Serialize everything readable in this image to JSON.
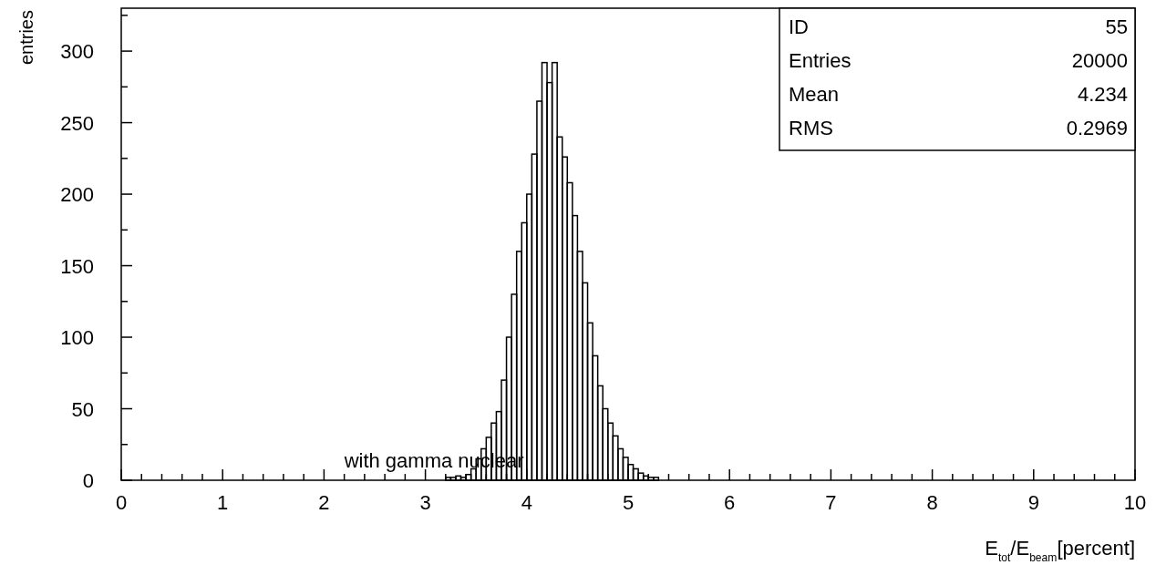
{
  "chart_data": {
    "type": "histogram",
    "xlabel": "E$_{tot}$/E$_{beam}$[percent]",
    "ylabel": "entries",
    "bins": [
      3.2,
      3.25,
      3.3,
      3.35,
      3.4,
      3.45,
      3.5,
      3.55,
      3.6,
      3.65,
      3.7,
      3.75,
      3.8,
      3.85,
      3.9,
      3.95,
      4.0,
      4.05,
      4.1,
      4.15,
      4.2,
      4.25,
      4.3,
      4.35,
      4.4,
      4.45,
      4.5,
      4.55,
      4.6,
      4.65,
      4.7,
      4.75,
      4.8,
      4.85,
      4.9,
      4.95,
      5.0,
      5.05,
      5.1,
      5.15,
      5.2,
      5.25,
      5.3
    ],
    "values": [
      2,
      2,
      3,
      2,
      4,
      8,
      15,
      22,
      30,
      40,
      48,
      70,
      100,
      130,
      160,
      180,
      200,
      228,
      265,
      292,
      278,
      292,
      240,
      226,
      208,
      185,
      160,
      138,
      110,
      87,
      66,
      50,
      40,
      31,
      22,
      16,
      11,
      8,
      5,
      3,
      2,
      2
    ],
    "color": "#000000",
    "xlim": [
      0,
      10
    ],
    "xticks": [
      0,
      {
        "value": 0.2,
        "label": null
      },
      {
        "value": 0.4,
        "label": null
      },
      {
        "value": 0.6,
        "label": null
      },
      {
        "value": 0.8,
        "label": null
      },
      1,
      {
        "value": 1.2,
        "label": null
      },
      {
        "value": 1.4,
        "label": null
      },
      {
        "value": 1.6,
        "label": null
      },
      {
        "value": 1.8,
        "label": null
      },
      2,
      {
        "value": 2.2,
        "label": null
      },
      {
        "value": 2.4,
        "label": null
      },
      {
        "value": 2.6,
        "label": null
      },
      {
        "value": 2.8,
        "label": null
      },
      3,
      {
        "value": 3.2,
        "label": null
      },
      {
        "value": 3.4,
        "label": null
      },
      {
        "value": 3.6,
        "label": null
      },
      {
        "value": 3.8,
        "label": null
      },
      4,
      {
        "value": 4.2,
        "label": null
      },
      {
        "value": 4.4,
        "label": null
      },
      {
        "value": 4.6,
        "label": null
      },
      {
        "value": 4.8,
        "label": null
      },
      5,
      {
        "value": 5.2,
        "label": null
      },
      {
        "value": 5.4,
        "label": null
      },
      {
        "value": 5.6,
        "label": null
      },
      {
        "value": 5.8,
        "label": null
      },
      6,
      {
        "value": 6.2,
        "label": null
      },
      {
        "value": 6.4,
        "label": null
      },
      {
        "value": 6.6,
        "label": null
      },
      {
        "value": 6.8,
        "label": null
      },
      7,
      {
        "value": 7.2,
        "label": null
      },
      {
        "value": 7.4,
        "label": null
      },
      {
        "value": 7.6,
        "label": null
      },
      {
        "value": 7.8,
        "label": null
      },
      8,
      {
        "value": 8.2,
        "label": null
      },
      {
        "value": 8.4,
        "label": null
      },
      {
        "value": 8.6,
        "label": null
      },
      {
        "value": 8.8,
        "label": null
      },
      9,
      {
        "value": 9.2,
        "label": null
      },
      {
        "value": 9.4,
        "label": null
      },
      {
        "value": 9.6,
        "label": null
      },
      {
        "value": 9.8,
        "label": null
      },
      10
    ],
    "ylim": [
      0,
      330
    ],
    "yticks": [
      0,
      {
        "value": 25,
        "label": null
      },
      50,
      {
        "value": 75,
        "label": null
      },
      100,
      {
        "value": 125,
        "label": null
      },
      150,
      {
        "value": 175,
        "label": null
      },
      200,
      {
        "value": 225,
        "label": null
      },
      250,
      {
        "value": 275,
        "label": null
      },
      300,
      {
        "value": 325,
        "label": null
      }
    ],
    "annotations": [
      "with gamma nuclear",
      "ID",
      "55",
      "Entries",
      "20000",
      "Mean",
      "4.234",
      "RMS",
      "0.2969"
    ]
  }
}
